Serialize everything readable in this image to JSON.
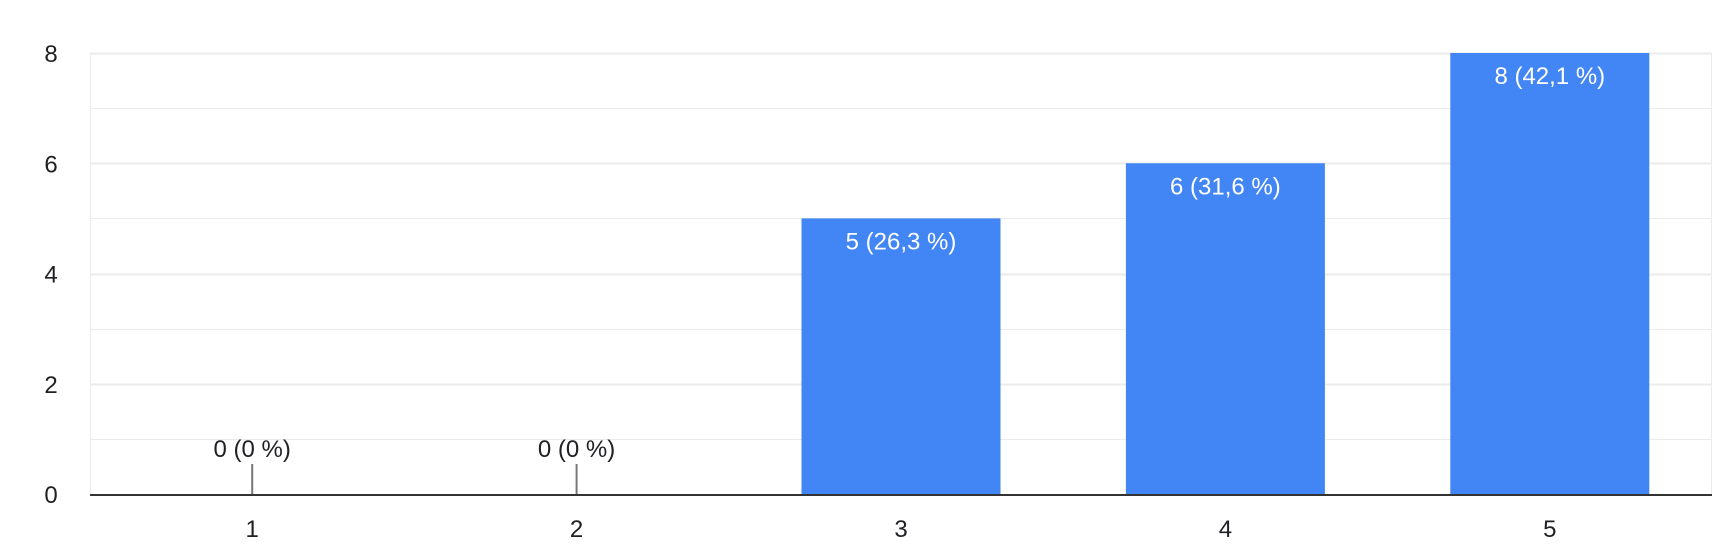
{
  "chart_data": {
    "type": "bar",
    "categories": [
      "1",
      "2",
      "3",
      "4",
      "5"
    ],
    "values": [
      0,
      0,
      5,
      6,
      8
    ],
    "data_labels": [
      "0 (0 %)",
      "0 (0 %)",
      "5 (26,3 %)",
      "6 (31,6 %)",
      "8 (42,1 %)"
    ],
    "y_ticks": [
      "0",
      "2",
      "4",
      "6",
      "8"
    ],
    "ylim": [
      0,
      8
    ],
    "y_minor_step": 1,
    "grid": true,
    "title": "",
    "xlabel": "",
    "ylabel": "",
    "colors": {
      "bar": "#4285f4",
      "label_inside": "#ffffff",
      "label_outside": "#202124",
      "grid": "#ebebeb",
      "axis": "#333333"
    }
  }
}
